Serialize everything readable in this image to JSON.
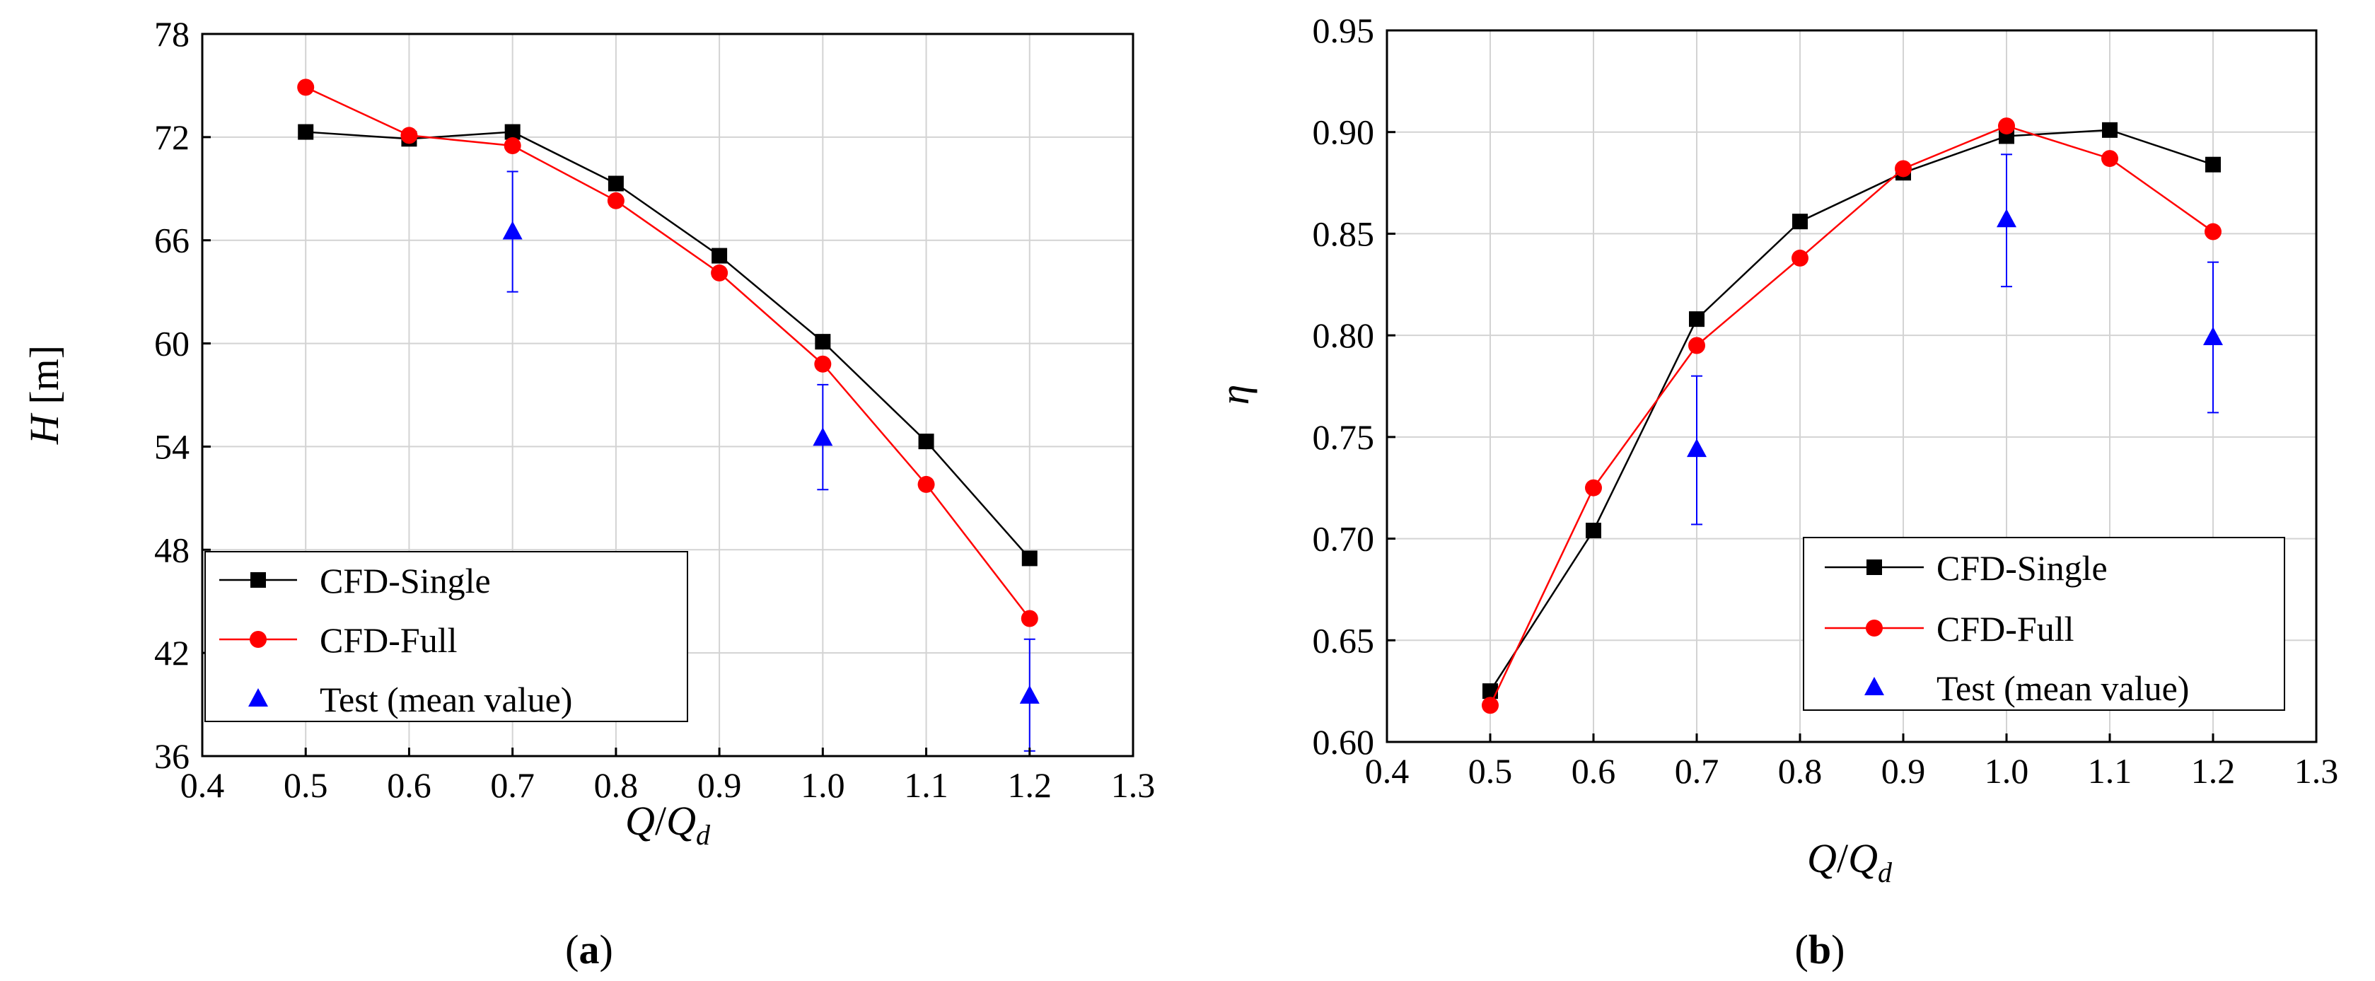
{
  "chart_data": [
    {
      "type": "line",
      "panel_label": {
        "open": "(",
        "letter": "a",
        "close": ")"
      },
      "xlabel": {
        "main": "Q",
        "sep": "/",
        "main2": "Q",
        "sub": "d"
      },
      "ylabel": {
        "main": "H",
        "unit": " [m]"
      },
      "xlim": [
        0.4,
        1.3
      ],
      "ylim": [
        36,
        78
      ],
      "xticks": [
        0.4,
        0.5,
        0.6,
        0.7,
        0.8,
        0.9,
        1.0,
        1.1,
        1.2,
        1.3
      ],
      "xtick_labels": [
        "0.4",
        "0.5",
        "0.6",
        "0.7",
        "0.8",
        "0.9",
        "1.0",
        "1.1",
        "1.2",
        "1.3"
      ],
      "yticks": [
        36,
        42,
        48,
        54,
        60,
        66,
        72,
        78
      ],
      "ytick_labels": [
        "36",
        "42",
        "48",
        "54",
        "60",
        "66",
        "72",
        "78"
      ],
      "grid": true,
      "legend_position": "bottom-left",
      "series": [
        {
          "name": "CFD-Single",
          "marker": "square",
          "color": "#000000",
          "x": [
            0.5,
            0.6,
            0.7,
            0.8,
            0.9,
            1.0,
            1.1,
            1.2
          ],
          "y": [
            72.3,
            71.9,
            72.3,
            69.3,
            65.1,
            60.1,
            54.3,
            47.5
          ]
        },
        {
          "name": "CFD-Full",
          "marker": "circle",
          "color": "#ff0000",
          "x": [
            0.5,
            0.6,
            0.7,
            0.8,
            0.9,
            1.0,
            1.1,
            1.2
          ],
          "y": [
            74.9,
            72.1,
            71.5,
            68.3,
            64.1,
            58.8,
            51.8,
            44.0
          ]
        },
        {
          "name": "Test (mean value)",
          "marker": "triangle",
          "color": "#0000ff",
          "line": false,
          "x": [
            0.7,
            1.0,
            1.2
          ],
          "y": [
            66.5,
            54.5,
            39.5
          ],
          "err_low": [
            63.0,
            51.5,
            36.3
          ],
          "err_high": [
            70.0,
            57.6,
            42.8
          ]
        }
      ]
    },
    {
      "type": "line",
      "panel_label": {
        "open": "(",
        "letter": "b",
        "close": ")"
      },
      "xlabel": {
        "main": "Q",
        "sep": "/",
        "main2": "Q",
        "sub": "d"
      },
      "ylabel": {
        "main": "η",
        "unit": ""
      },
      "xlim": [
        0.4,
        1.3
      ],
      "ylim": [
        0.6,
        0.95
      ],
      "xticks": [
        0.4,
        0.5,
        0.6,
        0.7,
        0.8,
        0.9,
        1.0,
        1.1,
        1.2,
        1.3
      ],
      "xtick_labels": [
        "0.4",
        "0.5",
        "0.6",
        "0.7",
        "0.8",
        "0.9",
        "1.0",
        "1.1",
        "1.2",
        "1.3"
      ],
      "yticks": [
        0.6,
        0.65,
        0.7,
        0.75,
        0.8,
        0.85,
        0.9,
        0.95
      ],
      "ytick_labels": [
        "0.60",
        "0.65",
        "0.70",
        "0.75",
        "0.80",
        "0.85",
        "0.90",
        "0.95"
      ],
      "grid": true,
      "legend_position": "bottom-right",
      "series": [
        {
          "name": "CFD-Single",
          "marker": "square",
          "color": "#000000",
          "x": [
            0.5,
            0.6,
            0.7,
            0.8,
            0.9,
            1.0,
            1.1,
            1.2
          ],
          "y": [
            0.625,
            0.704,
            0.808,
            0.856,
            0.88,
            0.898,
            0.901,
            0.884
          ]
        },
        {
          "name": "CFD-Full",
          "marker": "circle",
          "color": "#ff0000",
          "x": [
            0.5,
            0.6,
            0.7,
            0.8,
            0.9,
            1.0,
            1.1,
            1.2
          ],
          "y": [
            0.618,
            0.725,
            0.795,
            0.838,
            0.882,
            0.903,
            0.887,
            0.851
          ]
        },
        {
          "name": "Test (mean value)",
          "marker": "triangle",
          "color": "#0000ff",
          "line": false,
          "x": [
            0.7,
            1.0,
            1.2
          ],
          "y": [
            0.744,
            0.857,
            0.799
          ],
          "err_low": [
            0.707,
            0.824,
            0.762
          ],
          "err_high": [
            0.78,
            0.889,
            0.836
          ]
        }
      ]
    }
  ]
}
